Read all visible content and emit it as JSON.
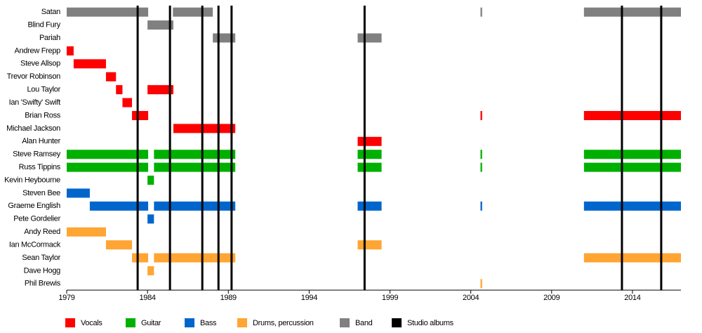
{
  "chart_data": {
    "type": "timeline",
    "categories": [
      "Satan",
      "Blind Fury",
      "Pariah",
      "Andrew Frepp",
      "Steve Allsop",
      "Trevor Robinson",
      "Lou Taylor",
      "Ian 'Swifty' Swift",
      "Brian Ross",
      "Michael Jackson",
      "Alan Hunter",
      "Steve Ramsey",
      "Russ Tippins",
      "Kevin Heybourne",
      "Steven Bee",
      "Graeme English",
      "Pete Gordelier",
      "Andy Reed",
      "Ian McCormack",
      "Sean Taylor",
      "Dave Hogg",
      "Phil Brewis"
    ],
    "xlim": [
      1979,
      2017
    ],
    "xticks": [
      1979,
      1984,
      1989,
      1994,
      1999,
      2004,
      2009,
      2014
    ],
    "legend": "bottom",
    "series": [
      {
        "name": "Vocals",
        "color": "#ff0000",
        "values": [
          null,
          null,
          null,
          [
            [
              1979,
              1979.43
            ]
          ],
          [
            [
              1979.43,
              1981.43
            ]
          ],
          [
            [
              1981.43,
              1982.05
            ]
          ],
          [
            [
              1982.05,
              1982.45
            ],
            [
              1984,
              1985.6
            ]
          ],
          [
            [
              1982.45,
              1983.04
            ]
          ],
          [
            [
              1983.04,
              1984.04
            ],
            [
              2004.6,
              2004.7
            ],
            [
              2011,
              2017
            ]
          ],
          [
            [
              1985.6,
              1989.43
            ]
          ],
          [
            [
              1997,
              1998.48
            ]
          ],
          null,
          null,
          null,
          null,
          null,
          null,
          null,
          null,
          null,
          null,
          null
        ]
      },
      {
        "name": "Guitar",
        "color": "#00b000",
        "values": [
          null,
          null,
          null,
          null,
          null,
          null,
          null,
          null,
          null,
          null,
          null,
          [
            [
              1979,
              1984.04
            ],
            [
              1984.4,
              1989.43
            ],
            [
              1997,
              1998.48
            ],
            [
              2004.6,
              2004.7
            ],
            [
              2011,
              2017
            ]
          ],
          [
            [
              1979,
              1984.04
            ],
            [
              1984.4,
              1989.43
            ],
            [
              1997,
              1998.48
            ],
            [
              2004.6,
              2004.7
            ],
            [
              2011,
              2017
            ]
          ],
          [
            [
              1984,
              1984.4
            ]
          ],
          null,
          null,
          null,
          null,
          null,
          null,
          null,
          null
        ]
      },
      {
        "name": "Bass",
        "color": "#0066cc",
        "values": [
          null,
          null,
          null,
          null,
          null,
          null,
          null,
          null,
          null,
          null,
          null,
          null,
          null,
          null,
          [
            [
              1979,
              1980.43
            ]
          ],
          [
            [
              1980.43,
              1984.04
            ],
            [
              1984.4,
              1989.43
            ],
            [
              1997,
              1998.48
            ],
            [
              2004.6,
              2004.7
            ],
            [
              2011,
              2017
            ]
          ],
          [
            [
              1984,
              1984.4
            ]
          ],
          null,
          null,
          null,
          null,
          null
        ]
      },
      {
        "name": "Drums, percussion",
        "color": "#ffa533",
        "values": [
          null,
          null,
          null,
          null,
          null,
          null,
          null,
          null,
          null,
          null,
          null,
          null,
          null,
          null,
          null,
          null,
          null,
          [
            [
              1979,
              1981.43
            ]
          ],
          [
            [
              1981.43,
              1983.04
            ],
            [
              1997,
              1998.48
            ]
          ],
          [
            [
              1983.04,
              1984.04
            ],
            [
              1984.4,
              1989.43
            ],
            [
              2011,
              2017
            ]
          ],
          [
            [
              1984,
              1984.4
            ]
          ],
          [
            [
              2004.6,
              2004.7
            ]
          ]
        ]
      },
      {
        "name": "Band",
        "color": "#808080",
        "values": [
          [
            [
              1979,
              1984.04
            ],
            [
              1985.57,
              1988.04
            ],
            [
              2004.6,
              2004.7
            ],
            [
              2011,
              2017
            ]
          ],
          [
            [
              1984,
              1985.6
            ]
          ],
          [
            [
              1988.04,
              1989.43
            ],
            [
              1997,
              1998.48
            ]
          ],
          null,
          null,
          null,
          null,
          null,
          null,
          null,
          null,
          null,
          null,
          null,
          null,
          null,
          null,
          null,
          null,
          null,
          null,
          null
        ]
      }
    ],
    "markers": {
      "name": "Studio albums",
      "color": "#000000",
      "values": [
        1983.39,
        1985.39,
        1987.39,
        1988.39,
        1989.2,
        1997.43,
        2013.35,
        2015.78
      ]
    }
  }
}
